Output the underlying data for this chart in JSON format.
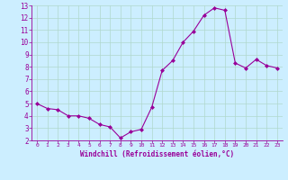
{
  "xlabel": "Windchill (Refroidissement éolien,°C)",
  "x": [
    0,
    1,
    2,
    3,
    4,
    5,
    6,
    7,
    8,
    9,
    10,
    11,
    12,
    13,
    14,
    15,
    16,
    17,
    18,
    19,
    20,
    21,
    22,
    23
  ],
  "y": [
    5.0,
    4.6,
    4.5,
    4.0,
    4.0,
    3.8,
    3.3,
    3.1,
    2.2,
    2.7,
    2.9,
    4.7,
    7.7,
    8.5,
    10.0,
    10.9,
    12.2,
    12.8,
    12.6,
    8.3,
    7.9,
    8.6,
    8.1,
    7.9
  ],
  "line_color": "#990099",
  "marker_color": "#990099",
  "background_color": "#cceeff",
  "grid_color": "#aaddcc",
  "text_color": "#990099",
  "ylim": [
    2,
    13
  ],
  "xlim": [
    -0.5,
    23.5
  ],
  "yticks": [
    2,
    3,
    4,
    5,
    6,
    7,
    8,
    9,
    10,
    11,
    12,
    13
  ],
  "xticks": [
    0,
    1,
    2,
    3,
    4,
    5,
    6,
    7,
    8,
    9,
    10,
    11,
    12,
    13,
    14,
    15,
    16,
    17,
    18,
    19,
    20,
    21,
    22,
    23
  ]
}
